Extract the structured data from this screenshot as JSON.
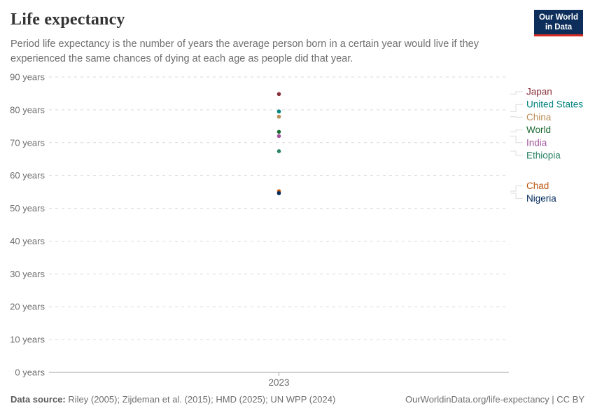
{
  "header": {
    "title": "Life expectancy",
    "subtitle_lines": [
      "Period life expectancy is the number of years the average person born in a certain year would live if they",
      "experienced the same chances of dying at each age as people did that year."
    ],
    "logo": {
      "line1": "Our World",
      "line2": "in Data",
      "bg_color": "#0d2e5b",
      "accent_color": "#d42b21"
    }
  },
  "chart_data": {
    "type": "scatter",
    "title": "Life expectancy",
    "x_categories": [
      "2023"
    ],
    "xlabel": "",
    "ylabel": "",
    "ylim": [
      0,
      90
    ],
    "ytick_interval": 10,
    "ytick_suffix": " years",
    "grid": "horizontal-dashed",
    "legend_position": "right",
    "colors": {
      "grid": "#d9d9d9",
      "axis": "#a0a0a0",
      "tick_label": "#6e6e6e",
      "connector": "#dcdcdc"
    },
    "series": [
      {
        "name": "Japan",
        "x": "2023",
        "value": 84.8,
        "color": "#883039"
      },
      {
        "name": "United States",
        "x": "2023",
        "value": 79.5,
        "color": "#00847E"
      },
      {
        "name": "China",
        "x": "2023",
        "value": 77.9,
        "color": "#BC8E5A"
      },
      {
        "name": "World",
        "x": "2023",
        "value": 73.3,
        "color": "#1F6B35"
      },
      {
        "name": "India",
        "x": "2023",
        "value": 72.0,
        "color": "#A2559C"
      },
      {
        "name": "Ethiopia",
        "x": "2023",
        "value": 67.4,
        "color": "#2C8465"
      },
      {
        "name": "Chad",
        "x": "2023",
        "value": 55.2,
        "color": "#BE5915"
      },
      {
        "name": "Nigeria",
        "x": "2023",
        "value": 54.6,
        "color": "#00295B"
      }
    ]
  },
  "footer": {
    "source_label": "Data source:",
    "source_text": " Riley (2005); Zijdeman et al. (2015); HMD (2025); UN WPP (2024)",
    "credit": "OurWorldinData.org/life-expectancy | CC BY"
  }
}
